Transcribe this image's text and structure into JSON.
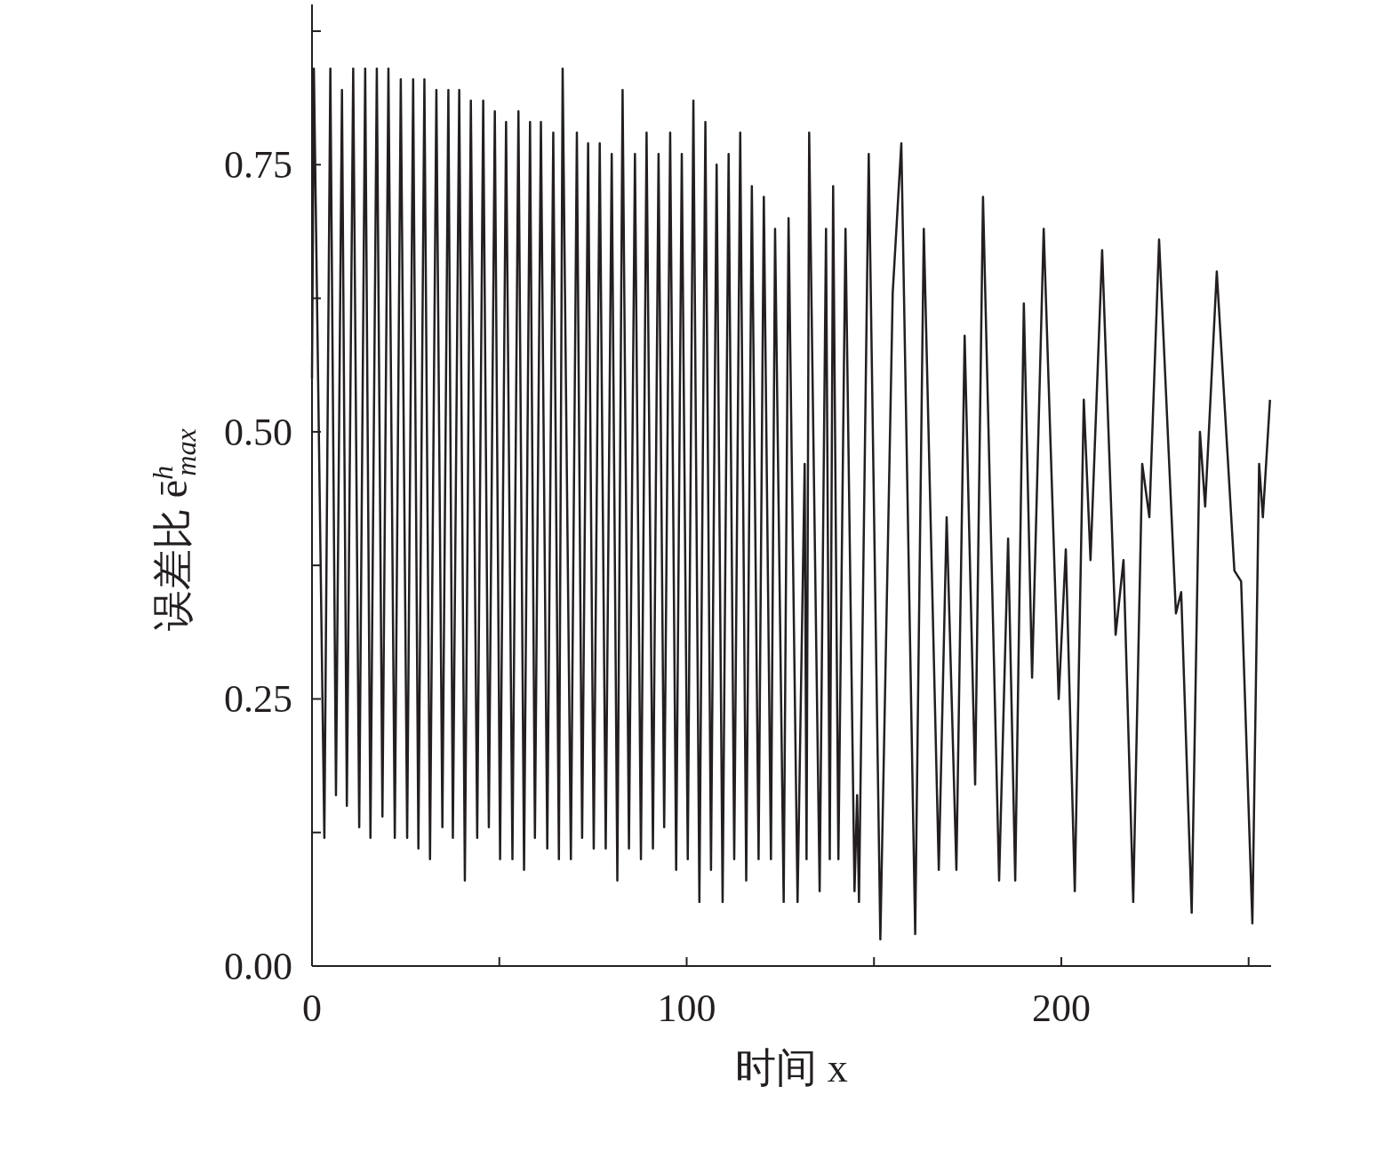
{
  "chart_data": {
    "type": "line",
    "xlabel": "时间 x",
    "ylabel": "误差比 ē$^{h}$$_{max}$",
    "xlim": [
      0,
      256
    ],
    "ylim": [
      0,
      0.9
    ],
    "xticks": [
      0,
      {
        "value": 50,
        "label": null
      },
      100,
      {
        "value": 150,
        "label": null
      },
      200,
      {
        "value": 250,
        "label": null
      }
    ],
    "yticks": [
      {
        "value": 0,
        "label": "0.00"
      },
      {
        "value": 0.125,
        "label": null
      },
      {
        "value": 0.25,
        "label": "0.25"
      },
      {
        "value": 0.375,
        "label": null
      },
      {
        "value": 0.5,
        "label": "0.50"
      },
      {
        "value": 0.625,
        "label": null
      },
      {
        "value": 0.75,
        "label": "0.75"
      },
      {
        "value": 0.875,
        "label": null
      }
    ],
    "series": [
      {
        "color": "#231f20",
        "x": [
          0,
          0.5,
          3.3,
          4.9,
          6.4,
          8.0,
          9.3,
          11.0,
          12.6,
          14.2,
          15.6,
          17.3,
          18.8,
          20.4,
          22.1,
          23.7,
          25.4,
          27.0,
          28.4,
          30.0,
          31.5,
          33.2,
          34.8,
          36.4,
          37.6,
          39.3,
          40.8,
          42.4,
          44.1,
          45.7,
          47.2,
          48.8,
          50.2,
          51.8,
          53.5,
          55.1,
          56.6,
          58.2,
          59.5,
          61.1,
          62.8,
          64.4,
          65.9,
          66.9,
          69.1,
          70.7,
          72.1,
          73.7,
          75.2,
          76.8,
          78.4,
          80.0,
          81.5,
          82.9,
          84.6,
          86.2,
          87.8,
          89.3,
          91.0,
          92.5,
          94.0,
          95.6,
          97.2,
          98.7,
          100.3,
          101.8,
          103.4,
          105.0,
          106.5,
          108.0,
          109.6,
          111.2,
          112.7,
          114.3,
          115.9,
          117.4,
          119.2,
          120.6,
          122.5,
          123.6,
          125.9,
          127.2,
          129.6,
          131.5,
          132.0,
          132.7,
          135.5,
          137.2,
          138.2,
          139.1,
          140.5,
          142.4,
          144.8,
          145.5,
          146.0,
          148.6,
          151.7,
          155.0,
          157.3,
          161.0,
          163.3,
          167.3,
          169.4,
          172.0,
          174.2,
          177.0,
          179.1,
          183.4,
          185.8,
          187.7,
          190.0,
          192.2,
          195.3,
          199.3,
          201.2,
          203.6,
          206.0,
          207.8,
          210.9,
          214.5,
          216.6,
          219.2,
          221.6,
          223.5,
          226.1,
          230.6,
          232.0,
          234.8,
          237.0,
          238.4,
          241.5,
          246.2,
          248.0,
          251.0,
          252.8,
          253.8,
          255.7
        ],
        "values": [
          0.55,
          0.84,
          0.12,
          0.84,
          0.16,
          0.82,
          0.15,
          0.84,
          0.13,
          0.84,
          0.12,
          0.84,
          0.14,
          0.84,
          0.12,
          0.83,
          0.12,
          0.83,
          0.11,
          0.83,
          0.1,
          0.82,
          0.13,
          0.82,
          0.12,
          0.82,
          0.08,
          0.81,
          0.12,
          0.81,
          0.13,
          0.8,
          0.1,
          0.79,
          0.1,
          0.8,
          0.09,
          0.79,
          0.12,
          0.79,
          0.11,
          0.78,
          0.1,
          0.84,
          0.1,
          0.78,
          0.12,
          0.77,
          0.11,
          0.77,
          0.11,
          0.76,
          0.08,
          0.82,
          0.11,
          0.76,
          0.1,
          0.78,
          0.11,
          0.76,
          0.13,
          0.78,
          0.09,
          0.76,
          0.1,
          0.81,
          0.06,
          0.79,
          0.09,
          0.75,
          0.06,
          0.76,
          0.1,
          0.78,
          0.08,
          0.73,
          0.1,
          0.72,
          0.1,
          0.69,
          0.06,
          0.7,
          0.06,
          0.47,
          0.1,
          0.78,
          0.07,
          0.69,
          0.1,
          0.73,
          0.1,
          0.69,
          0.07,
          0.16,
          0.06,
          0.76,
          0.025,
          0.63,
          0.77,
          0.03,
          0.69,
          0.09,
          0.42,
          0.09,
          0.59,
          0.17,
          0.72,
          0.08,
          0.4,
          0.08,
          0.62,
          0.27,
          0.69,
          0.25,
          0.39,
          0.07,
          0.53,
          0.38,
          0.67,
          0.31,
          0.38,
          0.06,
          0.47,
          0.42,
          0.68,
          0.33,
          0.35,
          0.05,
          0.5,
          0.43,
          0.65,
          0.37,
          0.36,
          0.04,
          0.47,
          0.42,
          0.53
        ]
      }
    ]
  }
}
